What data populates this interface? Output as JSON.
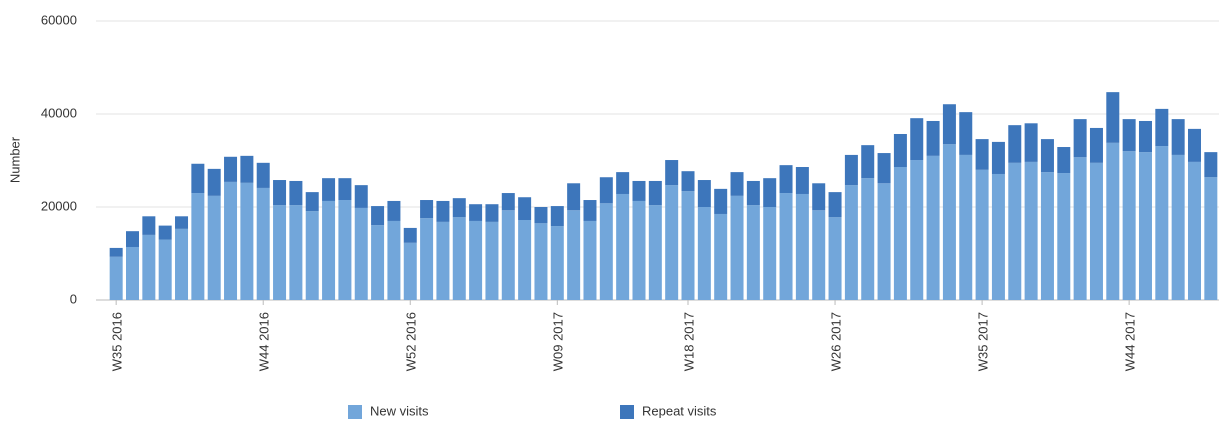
{
  "chart_data": {
    "type": "stacked_bar",
    "y_label": "Number",
    "categories": [
      "W35 2016",
      null,
      null,
      null,
      null,
      null,
      null,
      null,
      null,
      "W44 2016",
      null,
      null,
      null,
      null,
      null,
      null,
      null,
      null,
      "W52 2016",
      null,
      null,
      null,
      null,
      null,
      null,
      null,
      null,
      "W09 2017",
      null,
      null,
      null,
      null,
      null,
      null,
      null,
      "W18 2017",
      null,
      null,
      null,
      null,
      null,
      null,
      null,
      null,
      "W26 2017",
      null,
      null,
      null,
      null,
      null,
      null,
      null,
      null,
      "W35 2017",
      null,
      null,
      null,
      null,
      null,
      null,
      null,
      null,
      "W44 2017",
      null,
      null,
      null,
      null,
      null
    ],
    "series": [
      {
        "name": "New visits",
        "color": "#72a6da",
        "values": [
          9300,
          11400,
          14000,
          13000,
          15300,
          23000,
          22400,
          25400,
          25200,
          24100,
          20400,
          20400,
          19100,
          21300,
          21500,
          19800,
          16100,
          17000,
          12300,
          17600,
          16800,
          17800,
          17000,
          16800,
          19300,
          17200,
          16500,
          15900,
          19300,
          17000,
          20800,
          22800,
          21300,
          20400,
          24700,
          23400,
          20000,
          18500,
          22400,
          20400,
          20000,
          23000,
          22800,
          19300,
          17800,
          24700,
          26200,
          25100,
          28600,
          30100,
          31000,
          33500,
          31200,
          28000,
          27100,
          29500,
          29700,
          27500,
          27300,
          30700,
          29500,
          33800,
          32000,
          31800,
          33100,
          31200,
          29700,
          26400
        ]
      },
      {
        "name": "Repeat visits",
        "color": "#3d76bb",
        "values": [
          1900,
          3400,
          4000,
          3000,
          2700,
          6300,
          5800,
          5400,
          5800,
          5400,
          5400,
          5200,
          4100,
          4900,
          4700,
          4900,
          4100,
          4300,
          3200,
          3900,
          4500,
          4100,
          3600,
          3800,
          3700,
          4900,
          3500,
          4300,
          5800,
          4500,
          5600,
          4700,
          4300,
          5200,
          5400,
          4300,
          5800,
          5400,
          5100,
          5200,
          6200,
          6000,
          5800,
          5800,
          5400,
          6500,
          7100,
          6500,
          7100,
          9000,
          7500,
          8600,
          9200,
          6600,
          6900,
          8100,
          8300,
          7100,
          5600,
          8200,
          7500,
          10900,
          6900,
          6700,
          8000,
          7700,
          7100,
          5400
        ]
      }
    ],
    "ylim": [
      0,
      60000
    ],
    "yticks": [
      0,
      20000,
      40000,
      60000
    ],
    "grid": true,
    "legend": "bottom"
  }
}
